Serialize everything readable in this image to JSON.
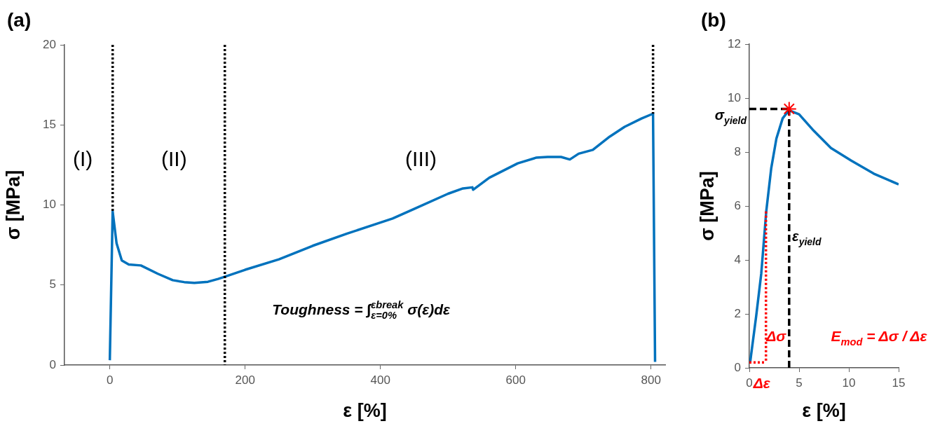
{
  "chart_data": [
    {
      "type": "line",
      "title": "(a)",
      "xlabel": "ε [%]",
      "ylabel": "σ [MPa]",
      "xlim": [
        -67,
        821
      ],
      "xticks": [
        0,
        200,
        400,
        600,
        800
      ],
      "ylim": [
        0,
        20
      ],
      "yticks": [
        0,
        5,
        10,
        15,
        20
      ],
      "grid": false,
      "legend": false,
      "marker": "none",
      "series": [
        {
          "color": "#000000",
          "line_style": "dotted",
          "x": [
            4.2,
            4.2
          ],
          "values": [
            20,
            9.6
          ]
        },
        {
          "color": "#000000",
          "line_style": "dotted",
          "x": [
            170,
            170
          ],
          "values": [
            20,
            0
          ]
        },
        {
          "color": "#000000",
          "line_style": "dotted",
          "x": [
            803,
            803
          ],
          "values": [
            20,
            15.7
          ]
        },
        {
          "color": "#0072bd",
          "x": [
            0,
            4.2,
            10,
            17.7,
            28,
            46,
            71,
            93,
            110,
            125,
            145,
            160,
            171,
            200,
            250,
            300,
            350,
            400,
            418,
            450,
            500,
            522,
            536,
            537,
            545,
            561,
            603,
            630,
            647,
            667,
            680,
            693,
            714,
            739,
            761,
            786,
            803,
            806
          ],
          "values": [
            0.3,
            9.6,
            7.6,
            6.53,
            6.28,
            6.22,
            5.7,
            5.3,
            5.18,
            5.13,
            5.2,
            5.38,
            5.53,
            5.95,
            6.6,
            7.45,
            8.2,
            8.9,
            9.15,
            9.75,
            10.7,
            11.03,
            11.1,
            10.95,
            11.2,
            11.7,
            12.6,
            12.95,
            13.0,
            13.0,
            12.84,
            13.2,
            13.44,
            14.27,
            14.88,
            15.4,
            15.7,
            0.2
          ]
        }
      ],
      "annotations": [
        "(I)",
        "(II)",
        "(III)",
        "Toughness = ∫$_{ε=0%}$$^{εbreak}$ σ(ε)dε"
      ]
    },
    {
      "type": "line",
      "title": "(b)",
      "xlabel": "ε [%]",
      "ylabel": "σ [MPa]",
      "xlim": [
        0,
        15
      ],
      "xticks": [
        0,
        5,
        10,
        15
      ],
      "ylim": [
        0,
        12
      ],
      "yticks": [
        0,
        2,
        4,
        6,
        8,
        10,
        12
      ],
      "grid": false,
      "legend": false,
      "marker": "none",
      "series": [
        {
          "color": "#000000",
          "line_style": "dashed",
          "x": [
            0,
            4
          ],
          "values": [
            9.6,
            9.6
          ]
        },
        {
          "color": "#000000",
          "line_style": "dashed",
          "x": [
            4,
            4
          ],
          "values": [
            0,
            9.6
          ]
        },
        {
          "color": "#ff0000",
          "line_style": "dotted",
          "x": [
            1.67,
            1.67
          ],
          "values": [
            5.8,
            0.2
          ]
        },
        {
          "color": "#ff0000",
          "line_style": "dotted",
          "x": [
            0,
            1.67
          ],
          "values": [
            0.2,
            0.2
          ]
        },
        {
          "color": "#0072bd",
          "x": [
            0.08,
            0.69,
            1.2,
            1.7,
            2.2,
            2.72,
            3.35,
            3.98,
            5.0,
            6.47,
            8.2,
            10.24,
            12.5,
            15
          ],
          "values": [
            0.2,
            1.92,
            3.5,
            5.8,
            7.4,
            8.5,
            9.25,
            9.55,
            9.4,
            8.79,
            8.15,
            7.68,
            7.2,
            6.8
          ]
        },
        {
          "type": "scatter",
          "marker": "cross",
          "color": "#ff0000",
          "x": [
            4
          ],
          "values": [
            9.6
          ]
        }
      ],
      "annotations": [
        "σ$_{yield}$",
        "ε$_{yield}$",
        "Δσ",
        "Δε",
        "E$_{mod}$ = Δσ / Δε"
      ]
    }
  ]
}
